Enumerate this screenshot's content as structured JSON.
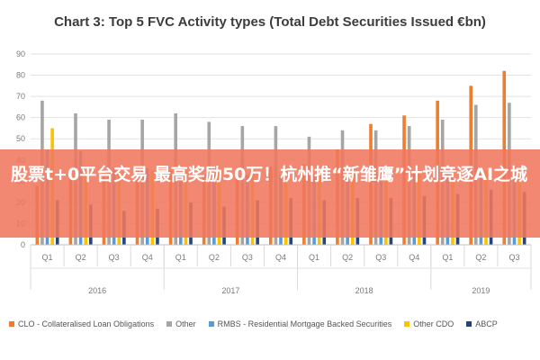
{
  "chart_data": {
    "type": "bar",
    "title": "Chart 3: Top 5 FVC Activity types (Total Debt Securities Issued €bn)",
    "ylim": [
      0,
      90
    ],
    "yticks": [
      0,
      10,
      20,
      30,
      40,
      50,
      60,
      70,
      80,
      90
    ],
    "grid": true,
    "legend_position": "bottom",
    "categories": [
      "Q1",
      "Q2",
      "Q3",
      "Q4",
      "Q1",
      "Q2",
      "Q3",
      "Q4",
      "Q1",
      "Q2",
      "Q3",
      "Q4",
      "Q1",
      "Q2",
      "Q3"
    ],
    "years": [
      {
        "label": "2016",
        "count": 4
      },
      {
        "label": "2017",
        "count": 4
      },
      {
        "label": "2018",
        "count": 4
      },
      {
        "label": "2019",
        "count": 3
      }
    ],
    "series": [
      {
        "name": "CLO - Collateralised Loan Obligations",
        "color": "#ed7d31",
        "values": [
          28,
          32,
          32,
          35,
          35,
          33,
          33,
          37,
          38,
          45,
          57,
          61,
          68,
          75,
          82
        ]
      },
      {
        "name": "Other",
        "color": "#a5a5a5",
        "values": [
          68,
          62,
          59,
          59,
          62,
          58,
          56,
          56,
          51,
          54,
          54,
          56,
          59,
          66,
          67
        ]
      },
      {
        "name": "RMBS - Residential Mortgage Backed Securities",
        "color": "#5b9bd5",
        "values": [
          45,
          44,
          36,
          36,
          33,
          33,
          33,
          33,
          33,
          33,
          35,
          34,
          34,
          35,
          35
        ]
      },
      {
        "name": "Other CDO",
        "color": "#ffc000",
        "values": [
          55,
          35,
          35,
          35,
          35,
          35,
          35,
          35,
          35,
          35,
          35,
          35,
          35,
          35,
          35
        ]
      },
      {
        "name": "ABCP",
        "color": "#264478",
        "values": [
          21,
          19,
          16,
          17,
          20,
          18,
          21,
          22,
          21,
          22,
          22,
          23,
          24,
          26,
          25
        ]
      }
    ]
  },
  "overlay": {
    "text": "股票t+0平台交易 最高奖励50万！杭州推“新雏鹰”计划竞逐AI之城"
  }
}
